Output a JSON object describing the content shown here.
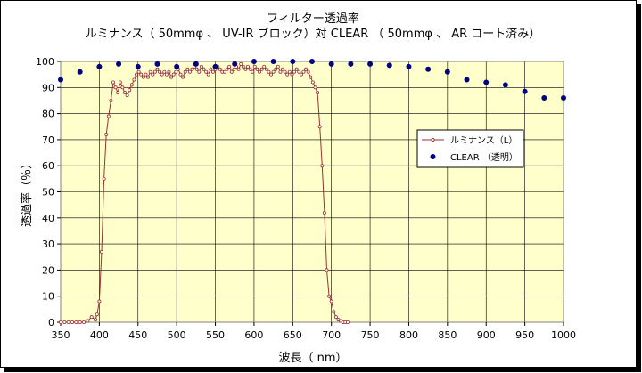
{
  "chart_data": {
    "type": "scatter",
    "title": "フィルター透過率",
    "subtitle": "ルミナンス（ 50mmφ 、 UV-IR ブロック）対 CLEAR （ 50mmφ 、 AR コート済み）",
    "xlabel": "波長（ nm）",
    "ylabel": "透過率（％）",
    "xlim": [
      350,
      1000
    ],
    "ylim": [
      0,
      100
    ],
    "xticks": [
      350,
      400,
      450,
      500,
      550,
      600,
      650,
      700,
      750,
      800,
      850,
      900,
      950,
      1000
    ],
    "yticks": [
      0,
      10,
      20,
      30,
      40,
      50,
      60,
      70,
      80,
      90,
      100
    ],
    "grid": true,
    "plot_background": "#ffffcc",
    "legend_position": "right",
    "series": [
      {
        "name": "ルミナンス（L）",
        "style": "line-with-markers",
        "color": "#993333",
        "x": [
          350,
          355,
          360,
          365,
          370,
          375,
          380,
          385,
          390,
          395,
          397,
          400,
          403,
          406,
          409,
          412,
          415,
          418,
          421,
          424,
          427,
          430,
          433,
          436,
          439,
          442,
          445,
          448,
          451,
          454,
          457,
          460,
          463,
          466,
          469,
          472,
          475,
          478,
          481,
          484,
          487,
          490,
          493,
          496,
          499,
          502,
          505,
          508,
          511,
          514,
          517,
          520,
          523,
          526,
          529,
          532,
          535,
          538,
          541,
          544,
          547,
          550,
          553,
          556,
          559,
          562,
          565,
          568,
          571,
          574,
          577,
          580,
          583,
          586,
          589,
          592,
          595,
          598,
          601,
          604,
          607,
          610,
          613,
          616,
          619,
          622,
          625,
          628,
          631,
          634,
          637,
          640,
          643,
          646,
          649,
          652,
          655,
          658,
          661,
          664,
          667,
          670,
          673,
          676,
          679,
          682,
          685,
          688,
          691,
          694,
          697,
          700,
          703,
          706,
          709,
          712,
          715,
          718,
          721
        ],
        "y": [
          0,
          0,
          0,
          0,
          0,
          0,
          0,
          0.5,
          2,
          1,
          3,
          8,
          27,
          55,
          72,
          79,
          85,
          92,
          90,
          88,
          92,
          90,
          88,
          87,
          89,
          91,
          93,
          95,
          96,
          95,
          94,
          95,
          94,
          96,
          95,
          96,
          97,
          96,
          95,
          96,
          95,
          96,
          94,
          95,
          96,
          97,
          95,
          94,
          96,
          97,
          96,
          97,
          98,
          97,
          96,
          98,
          97,
          96,
          95,
          97,
          96,
          97,
          98,
          97,
          96,
          96,
          97,
          98,
          96,
          97,
          98,
          97,
          99,
          98,
          97,
          98,
          97,
          96,
          98,
          97,
          96,
          97,
          98,
          97,
          96,
          95,
          96,
          97,
          98,
          96,
          97,
          96,
          95,
          96,
          95,
          96,
          97,
          96,
          95,
          96,
          97,
          96,
          94,
          92,
          90,
          88,
          75,
          60,
          42,
          20,
          10,
          8,
          4,
          2,
          1,
          0.5,
          0,
          0,
          0
        ]
      },
      {
        "name": "CLEAR （透明）",
        "style": "markers",
        "color": "#000080",
        "x": [
          350,
          375,
          400,
          425,
          450,
          475,
          500,
          525,
          550,
          575,
          600,
          625,
          650,
          675,
          700,
          725,
          750,
          775,
          800,
          825,
          850,
          875,
          900,
          925,
          950,
          975,
          1000
        ],
        "y": [
          93,
          96,
          98,
          99,
          98,
          99,
          98,
          99,
          98,
          99,
          100,
          100,
          100,
          100,
          99,
          99,
          99,
          98.5,
          98,
          97,
          96,
          93,
          92,
          91,
          88.5,
          86,
          86
        ]
      }
    ]
  }
}
